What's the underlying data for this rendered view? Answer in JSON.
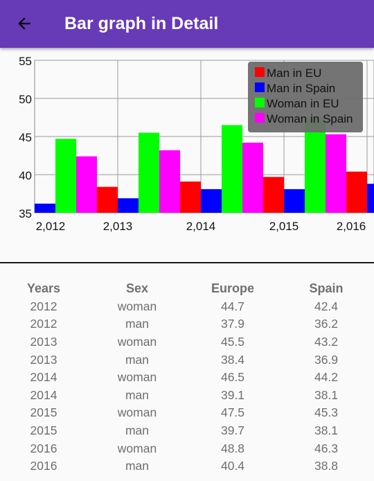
{
  "appbar": {
    "title": "Bar graph in Detail",
    "back_icon": "arrow-back-icon",
    "color": "#673ab7"
  },
  "chart_data": {
    "type": "bar",
    "categories": [
      "2,012",
      "2,013",
      "2,014",
      "2,015",
      "2,016"
    ],
    "y_ticks": [
      "35",
      "40",
      "45",
      "50",
      "55"
    ],
    "ylim": [
      35,
      55
    ],
    "grid": true,
    "legend_position": "top-right",
    "series": [
      {
        "name": "Man in EU",
        "color": "#ff0000",
        "values": [
          37.9,
          38.4,
          39.1,
          39.7,
          40.4
        ]
      },
      {
        "name": "Man in Spain",
        "color": "#0000ff",
        "values": [
          36.2,
          36.9,
          38.1,
          38.1,
          38.8
        ]
      },
      {
        "name": "Woman in EU",
        "color": "#00ff00",
        "values": [
          44.7,
          45.5,
          46.5,
          47.5,
          48.8
        ]
      },
      {
        "name": "Woman in Spain",
        "color": "#ff00ff",
        "values": [
          42.4,
          43.2,
          44.2,
          45.3,
          46.3
        ]
      }
    ]
  },
  "table": {
    "headers": [
      "Years",
      "Sex",
      "Europe",
      "Spain"
    ],
    "rows": [
      [
        "2012",
        "woman",
        "44.7",
        "42.4"
      ],
      [
        "2012",
        "man",
        "37.9",
        "36.2"
      ],
      [
        "2013",
        "woman",
        "45.5",
        "43.2"
      ],
      [
        "2013",
        "man",
        "38.4",
        "36.9"
      ],
      [
        "2014",
        "woman",
        "46.5",
        "44.2"
      ],
      [
        "2014",
        "man",
        "39.1",
        "38.1"
      ],
      [
        "2015",
        "woman",
        "47.5",
        "45.3"
      ],
      [
        "2015",
        "man",
        "39.7",
        "38.1"
      ],
      [
        "2016",
        "woman",
        "48.8",
        "46.3"
      ],
      [
        "2016",
        "man",
        "40.4",
        "38.8"
      ]
    ]
  }
}
